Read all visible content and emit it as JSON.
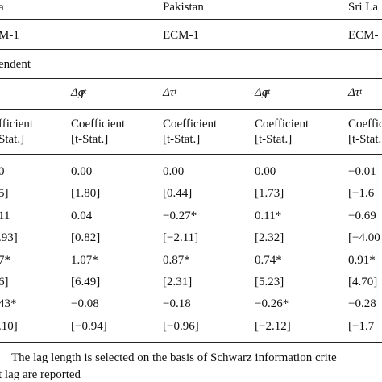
{
  "table": {
    "top": [
      "a",
      "Pakistan",
      "Sri La"
    ],
    "model": [
      "M-1",
      "ECM-1",
      "ECM-"
    ],
    "dependent": "endent",
    "vars": [
      {
        "base": "Δg",
        "sub": "t",
        "sup": "p"
      },
      {
        "base": "Δτ",
        "sub": "t"
      },
      {
        "base": "Δg",
        "sub": "t",
        "sup": "p"
      },
      {
        "base": "Δτ",
        "sub": "t"
      }
    ],
    "colhead": [
      [
        "fficient",
        "Stat.]"
      ],
      [
        "Coefficient",
        "[t-Stat.]"
      ],
      [
        "Coefficient",
        "[t-Stat.]"
      ],
      [
        "Coefficient",
        "[t-Stat.]"
      ],
      [
        "Coefficient",
        "[t-Stat."
      ]
    ],
    "rows": [
      [
        "0",
        "0.00",
        "0.00",
        "0.00",
        "−0.01"
      ],
      [
        "5]",
        "[1.80]",
        "[0.44]",
        "[1.73]",
        "[−1.6"
      ],
      [
        "11",
        "0.04",
        "−0.27*",
        "0.11*",
        "−0.69"
      ],
      [
        ".93]",
        "[0.82]",
        "[−2.11]",
        "[2.32]",
        "[−4.00"
      ],
      [
        "7*",
        "1.07*",
        "0.87*",
        "0.74*",
        "0.91*"
      ],
      [
        "6]",
        "[6.49]",
        "[2.31]",
        "[5.23]",
        "[4.70]"
      ],
      [
        "43*",
        "−0.08",
        "−0.18",
        "−0.26*",
        "−0.28"
      ],
      [
        ".10]",
        "[−0.94]",
        "[−0.96]",
        "[−2.12]",
        "[−1.7"
      ]
    ]
  },
  "footnote": [
    "The lag length is selected on the basis of Schwarz information crite",
    "t lag are reported"
  ]
}
